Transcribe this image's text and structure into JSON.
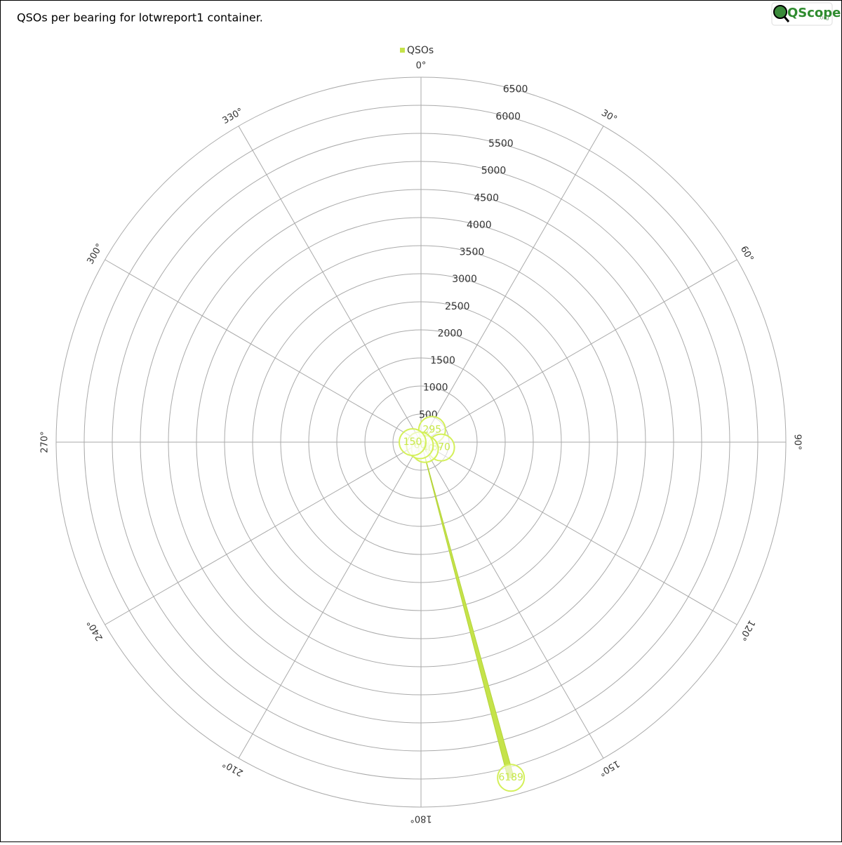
{
  "chart_data": {
    "type": "polar-bar",
    "title": "QSOs per bearing for lotwreport1 container.",
    "series": [
      {
        "name": "QSOs",
        "color": "#c5e34a",
        "x": [
          42,
          105,
          150,
          165,
          200,
          270
        ],
        "values": [
          295,
          370,
          140,
          6189,
          60,
          150
        ]
      }
    ],
    "rlim": [
      0,
      6500
    ],
    "rticks": [
      500,
      1000,
      1500,
      2000,
      2500,
      3000,
      3500,
      4000,
      4500,
      5000,
      5500,
      6000,
      6500
    ],
    "thetaticks": [
      {
        "value": 0,
        "label": "0°"
      },
      {
        "value": 30,
        "label": "30°"
      },
      {
        "value": 60,
        "label": "60°"
      },
      {
        "value": 90,
        "label": "90°"
      },
      {
        "value": 120,
        "label": "120°"
      },
      {
        "value": 150,
        "label": "150°"
      },
      {
        "value": 180,
        "label": "180°"
      },
      {
        "value": 210,
        "label": "210°"
      },
      {
        "value": 240,
        "label": "240°"
      },
      {
        "value": 270,
        "label": "270°"
      },
      {
        "value": 300,
        "label": "300°"
      },
      {
        "value": 330,
        "label": "330°"
      }
    ],
    "legend_position": "top",
    "grid": true
  },
  "logo": {
    "text": "QScope",
    "suffix": ".org"
  }
}
